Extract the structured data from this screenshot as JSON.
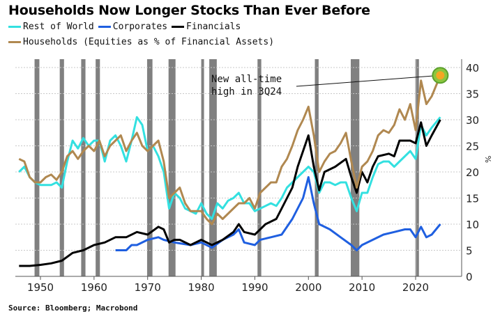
{
  "chart_data": {
    "type": "line",
    "title": "Households Now Longer Stocks Than Ever Before",
    "ylabel": "%",
    "xlim": [
      1946,
      2026
    ],
    "ylim": [
      0,
      40
    ],
    "x_ticks": [
      1950,
      1960,
      1970,
      1980,
      1990,
      2000,
      2010,
      2020
    ],
    "y_ticks": [
      0,
      5,
      10,
      15,
      20,
      25,
      30,
      35,
      40
    ],
    "grid": "horizontal dotted",
    "legend": "top-left",
    "annotation": {
      "text_line1": "New all-time",
      "text_line2": "high in 3Q24",
      "x": 2024.6,
      "y": 38.5
    },
    "recessions": [
      [
        1948.9,
        1949.8
      ],
      [
        1953.6,
        1954.4
      ],
      [
        1957.6,
        1958.4
      ],
      [
        1960.3,
        1961.1
      ],
      [
        1969.9,
        1970.9
      ],
      [
        1973.9,
        1975.2
      ],
      [
        1980.0,
        1980.5
      ],
      [
        1981.5,
        1982.9
      ],
      [
        1990.5,
        1991.2
      ],
      [
        2001.2,
        2001.9
      ],
      [
        2007.9,
        2009.5
      ],
      [
        2020.1,
        2020.4
      ]
    ],
    "series": [
      {
        "name": "Rest of World",
        "color": "#33e0e0",
        "x": [
          1946,
          1947,
          1948,
          1949,
          1950,
          1951,
          1952,
          1953,
          1954,
          1955,
          1956,
          1957,
          1958,
          1959,
          1960,
          1961,
          1962,
          1963,
          1964,
          1965,
          1966,
          1967,
          1968,
          1969,
          1970,
          1971,
          1972,
          1973,
          1974,
          1975,
          1976,
          1977,
          1978,
          1979,
          1980,
          1981,
          1982,
          1983,
          1984,
          1985,
          1986,
          1987,
          1988,
          1989,
          1990,
          1991,
          1992,
          1993,
          1994,
          1995,
          1996,
          1997,
          1998,
          1999,
          2000,
          2001,
          2002,
          2003,
          2004,
          2005,
          2006,
          2007,
          2008,
          2009,
          2010,
          2011,
          2012,
          2013,
          2014,
          2015,
          2016,
          2017,
          2018,
          2019,
          2020,
          2021,
          2022,
          2023,
          2024.6
        ],
        "y": [
          20,
          21,
          19,
          18,
          17.5,
          17.5,
          17.5,
          18,
          17,
          22,
          26,
          24.5,
          26.5,
          25,
          26,
          26,
          22,
          26,
          27,
          25,
          22,
          26,
          30.5,
          29,
          24,
          25,
          23,
          20,
          13,
          16,
          15,
          13,
          12.5,
          12,
          14,
          12,
          11,
          14,
          13,
          14.5,
          15,
          16,
          14,
          14,
          12.5,
          13,
          13.5,
          14,
          13.5,
          15,
          17,
          18,
          19,
          20,
          21,
          20,
          16,
          18,
          18,
          17.5,
          18,
          18,
          15,
          12.5,
          16,
          16,
          19,
          21.5,
          22,
          22,
          21,
          22,
          23,
          24,
          22.5,
          29,
          27,
          28.5,
          30.5
        ]
      },
      {
        "name": "Corporates",
        "color": "#1f5fe0",
        "x": [
          1964,
          1966,
          1967,
          1968,
          1970,
          1972,
          1973,
          1975,
          1978,
          1980,
          1982,
          1984,
          1986,
          1987,
          1988,
          1990,
          1991,
          1993,
          1995,
          1997,
          1999,
          2000,
          2001,
          2002,
          2004,
          2006,
          2008,
          2009,
          2010,
          2012,
          2014,
          2016,
          2018,
          2019,
          2020,
          2021,
          2022,
          2023,
          2024.6
        ],
        "y": [
          5,
          5,
          6,
          6,
          7,
          7.5,
          7,
          6.5,
          6,
          6.5,
          5.5,
          7,
          8,
          9,
          6.5,
          6,
          7,
          7.5,
          8,
          11,
          15,
          19,
          14,
          10,
          9,
          7.5,
          6,
          5,
          6,
          7,
          8,
          8.5,
          9,
          9,
          7.5,
          9.5,
          7.5,
          8,
          10
        ]
      },
      {
        "name": "Financials",
        "color": "#000000",
        "x": [
          1946,
          1948,
          1950,
          1952,
          1954,
          1956,
          1958,
          1960,
          1962,
          1964,
          1966,
          1968,
          1970,
          1972,
          1973,
          1974,
          1975,
          1976,
          1978,
          1980,
          1982,
          1984,
          1986,
          1987,
          1988,
          1990,
          1991,
          1992,
          1994,
          1995,
          1997,
          1998,
          1999,
          2000,
          2001,
          2002,
          2003,
          2005,
          2007,
          2008,
          2009,
          2010,
          2011,
          2012,
          2013,
          2015,
          2016,
          2017,
          2018,
          2019,
          2020,
          2021,
          2022,
          2023,
          2024.6
        ],
        "y": [
          2,
          2,
          2.2,
          2.5,
          3,
          4.5,
          5,
          6,
          6.5,
          7.5,
          7.5,
          8.5,
          8,
          9.5,
          9,
          6.5,
          7,
          7,
          6,
          7,
          6,
          7,
          8.5,
          10,
          8.5,
          8,
          9,
          10,
          11,
          13,
          17,
          21,
          24,
          27,
          21,
          16.5,
          20,
          21,
          22.5,
          19,
          16,
          20,
          18,
          21,
          23,
          23.5,
          23,
          26,
          26,
          26,
          25.5,
          29.5,
          25,
          27,
          30
        ]
      },
      {
        "name": "Households (Equities as % of Financial Assets)",
        "color": "#b08850",
        "x": [
          1946,
          1947,
          1948,
          1949,
          1950,
          1951,
          1952,
          1953,
          1954,
          1955,
          1956,
          1957,
          1958,
          1959,
          1960,
          1961,
          1962,
          1963,
          1964,
          1965,
          1966,
          1967,
          1968,
          1969,
          1970,
          1971,
          1972,
          1973,
          1974,
          1975,
          1976,
          1977,
          1978,
          1979,
          1980,
          1981,
          1982,
          1983,
          1984,
          1985,
          1986,
          1987,
          1988,
          1989,
          1990,
          1991,
          1992,
          1993,
          1994,
          1995,
          1996,
          1997,
          1998,
          1999,
          2000,
          2001,
          2002,
          2003,
          2004,
          2005,
          2006,
          2007,
          2008,
          2009,
          2010,
          2011,
          2012,
          2013,
          2014,
          2015,
          2016,
          2017,
          2018,
          2019,
          2020,
          2021,
          2022,
          2023,
          2024.6
        ],
        "y": [
          22.5,
          22,
          19,
          18,
          18,
          19,
          19.5,
          18.5,
          20,
          23,
          24,
          22.5,
          24,
          25,
          24,
          26,
          23,
          25,
          26,
          27,
          24,
          26,
          27.5,
          25,
          24,
          25,
          26,
          22,
          15,
          16,
          17,
          14,
          12.5,
          12.5,
          12.5,
          11,
          10,
          12,
          11,
          12,
          13,
          14,
          14,
          15,
          13,
          16,
          17,
          18,
          18,
          21,
          22.5,
          25,
          28,
          30,
          32.5,
          27,
          20,
          22,
          23.5,
          24,
          25.5,
          27.5,
          22,
          17,
          21,
          22,
          24,
          27,
          28,
          27.5,
          29,
          32,
          30,
          33,
          28,
          37.5,
          33,
          34.5,
          38.5
        ]
      }
    ]
  },
  "legend": {
    "items": [
      "Rest of World",
      "Corporates",
      "Financials",
      "Households (Equities as % of Financial Assets)"
    ]
  },
  "source": "Source: Bloomberg; Macrobond"
}
